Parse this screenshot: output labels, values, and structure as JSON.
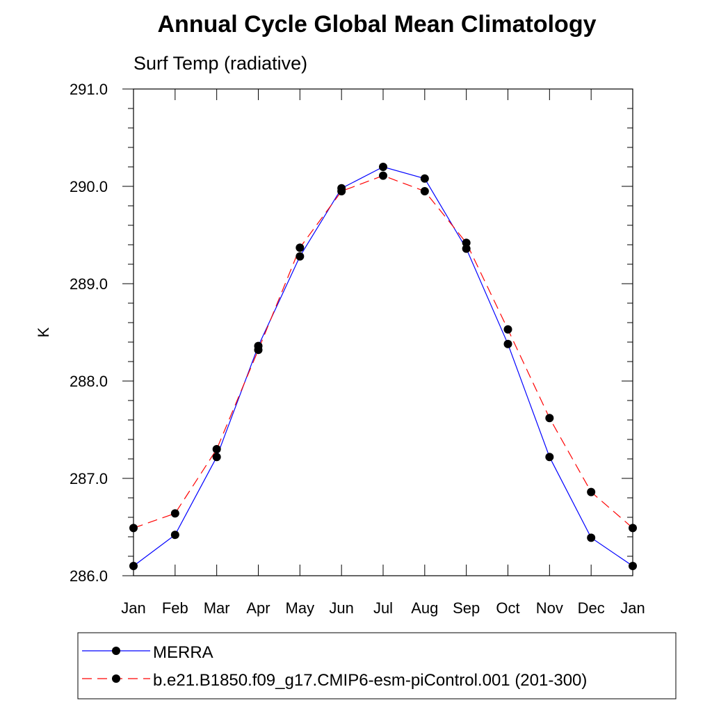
{
  "chart_data": {
    "type": "line",
    "title": "Annual Cycle Global Mean Climatology",
    "subtitle": "Surf Temp (radiative)",
    "xlabel": "",
    "ylabel": "K",
    "categories": [
      "Jan",
      "Feb",
      "Mar",
      "Apr",
      "May",
      "Jun",
      "Jul",
      "Aug",
      "Sep",
      "Oct",
      "Nov",
      "Dec",
      "Jan"
    ],
    "ylim": [
      286.0,
      291.0
    ],
    "yticks": [
      "286.0",
      "287.0",
      "288.0",
      "289.0",
      "290.0",
      "291.0"
    ],
    "grid": false,
    "series": [
      {
        "name": "MERRA",
        "color": "#0000ff",
        "dash": "solid",
        "marker": "filled-circle",
        "values": [
          286.1,
          286.42,
          287.22,
          288.36,
          289.28,
          289.98,
          290.2,
          290.08,
          289.36,
          288.38,
          287.22,
          286.39,
          286.1
        ]
      },
      {
        "name": "b.e21.B1850.f09_g17.CMIP6-esm-piControl.001 (201-300)",
        "color": "#ff0000",
        "dash": "dashed",
        "marker": "filled-circle",
        "values": [
          286.49,
          286.64,
          287.3,
          288.32,
          289.37,
          289.95,
          290.11,
          289.95,
          289.42,
          288.53,
          287.62,
          286.86,
          286.49
        ]
      }
    ],
    "legend_position": "bottom"
  }
}
